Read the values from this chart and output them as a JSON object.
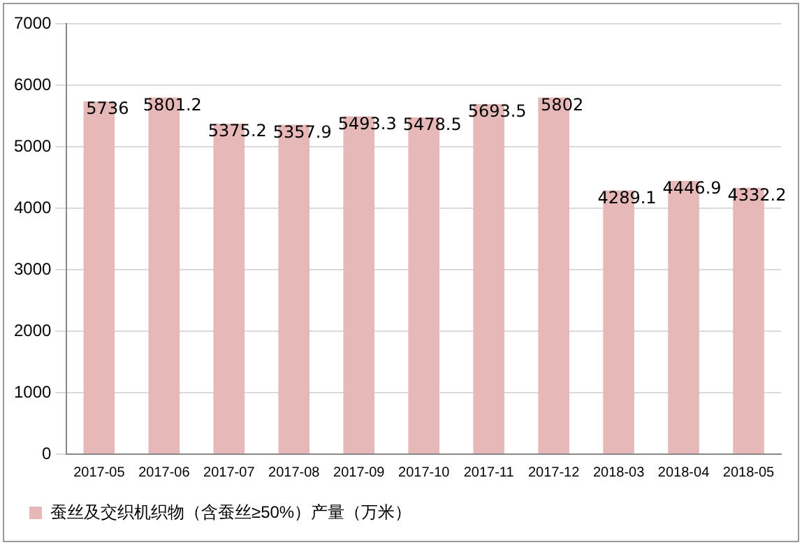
{
  "chart_data": {
    "type": "bar",
    "categories": [
      "2017-05",
      "2017-06",
      "2017-07",
      "2017-08",
      "2017-09",
      "2017-10",
      "2017-11",
      "2017-12",
      "2018-03",
      "2018-04",
      "2018-05"
    ],
    "series": [
      {
        "name": "蚕丝及交织机织物（含蚕丝≥50%）产量（万米）",
        "color": "#e6b9b8",
        "values": [
          5736,
          5801.2,
          5375.2,
          5357.9,
          5493.3,
          5478.5,
          5693.5,
          5802,
          4289.1,
          4446.9,
          4332.2
        ]
      }
    ],
    "ylim": [
      0,
      7000
    ],
    "yticks": [
      0,
      1000,
      2000,
      3000,
      4000,
      5000,
      6000,
      7000
    ],
    "grid": "y",
    "legend": "bottom",
    "data_labels": true
  }
}
